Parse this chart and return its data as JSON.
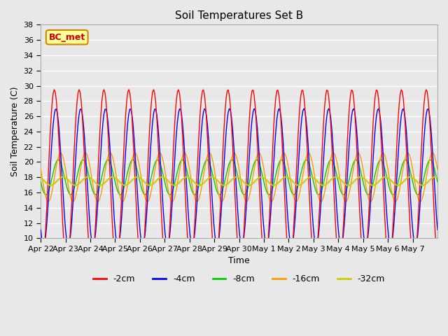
{
  "title": "Soil Temperatures Set B",
  "xlabel": "Time",
  "ylabel": "Soil Temperature (C)",
  "ylim": [
    10,
    38
  ],
  "annotation": "BC_met",
  "annotation_color": "#cc0000",
  "annotation_bg": "#ffff99",
  "annotation_border": "#cc8800",
  "series_colors": {
    "-2cm": "#ff0000",
    "-4cm": "#0000ff",
    "-8cm": "#00cc00",
    "-16cm": "#ff9900",
    "-32cm": "#cccc00"
  },
  "bg_color": "#e8e8e8",
  "plot_bg_color": "#e8e8e8",
  "grid_color": "#ffffff",
  "tick_dates": [
    "Apr 22",
    "Apr 23",
    "Apr 24",
    "Apr 25",
    "Apr 26",
    "Apr 27",
    "Apr 28",
    "Apr 29",
    "Apr 30",
    "May 1",
    "May 2",
    "May 3",
    "May 4",
    "May 5",
    "May 6",
    "May 7"
  ],
  "yticks": [
    10,
    12,
    14,
    16,
    18,
    20,
    22,
    24,
    26,
    28,
    30,
    32,
    34,
    36,
    38
  ]
}
